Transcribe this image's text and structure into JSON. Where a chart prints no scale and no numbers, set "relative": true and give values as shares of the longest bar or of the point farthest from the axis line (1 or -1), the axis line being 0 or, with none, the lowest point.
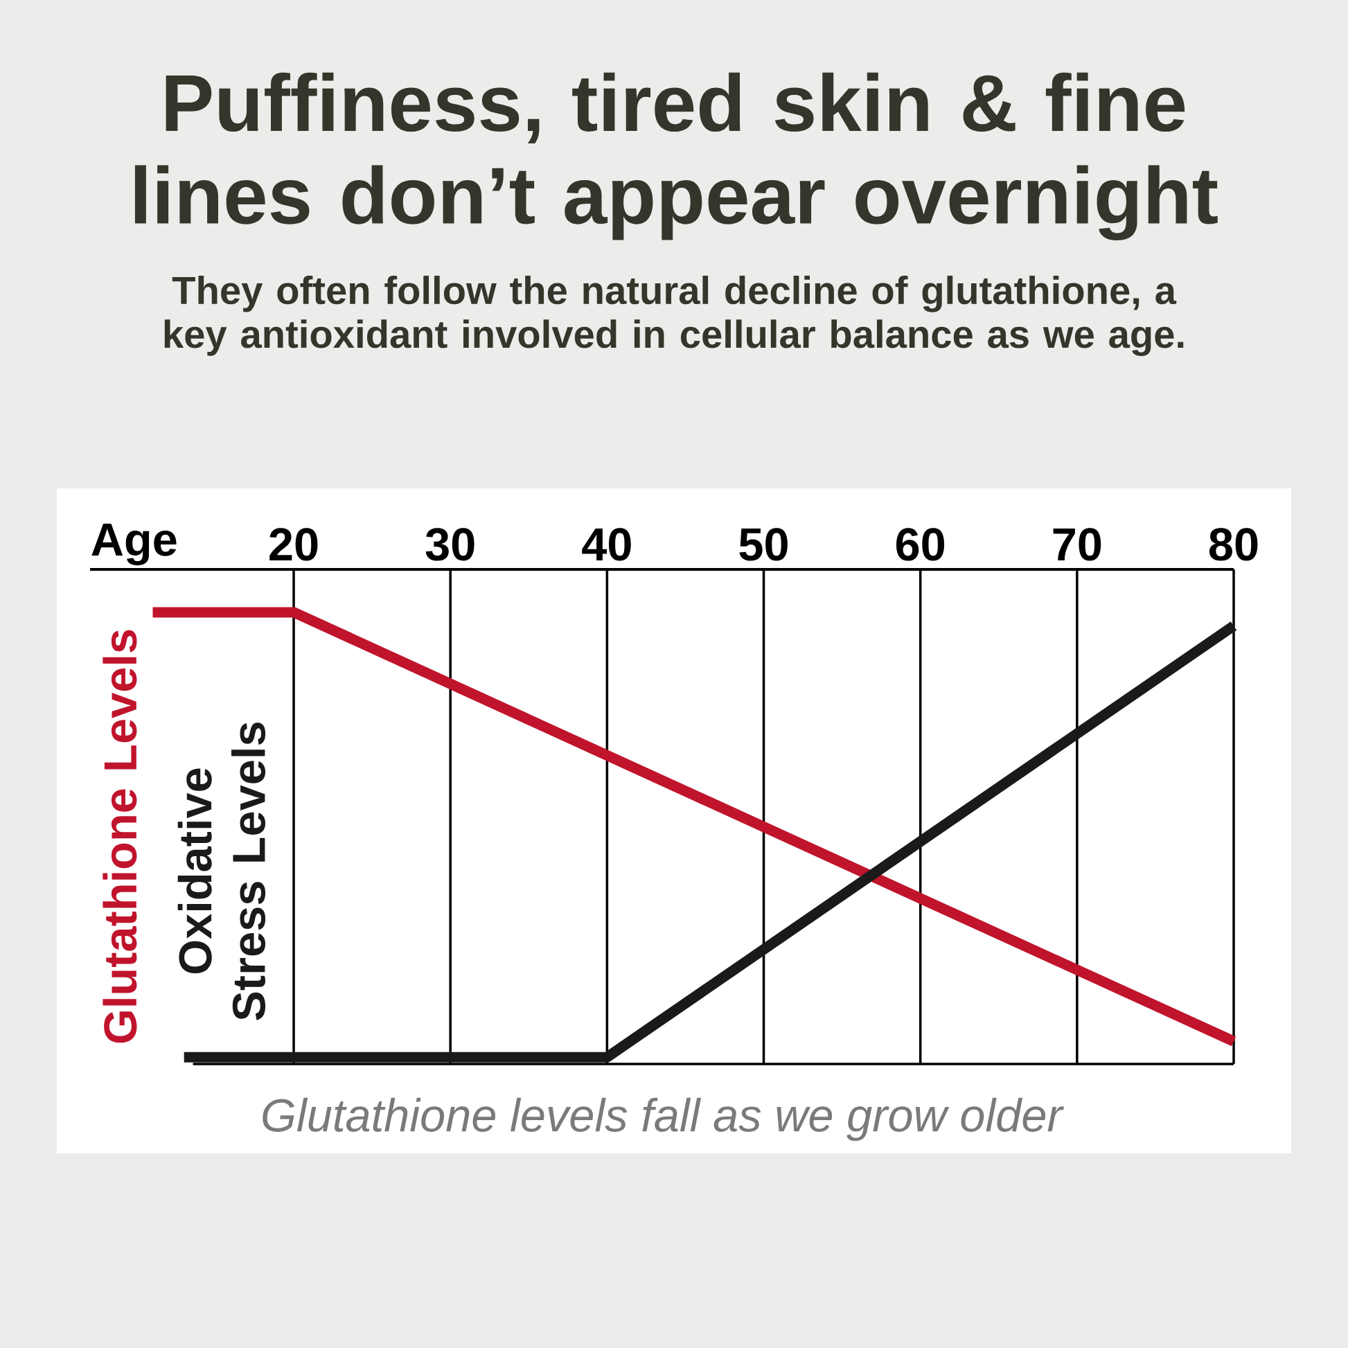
{
  "chart_data": {
    "type": "line",
    "title": "Puffiness, tired skin & fine lines don’t appear overnight",
    "subtitle": "They often follow the natural decline of glutathione, a key antioxidant involved in cellular balance as we age.",
    "xlabel": "Age",
    "annotations": [
      "Glutathione levels fall as we grow older"
    ],
    "relative": true,
    "xlim": [
      7,
      80
    ],
    "xticks": [
      20,
      30,
      40,
      50,
      60,
      70,
      80
    ],
    "grid": "x",
    "marker": "none",
    "line_style": "solid",
    "series": [
      {
        "name": "Glutathione Levels",
        "color": "#c0142c",
        "x": [
          11,
          20,
          80
        ],
        "values": [
          1,
          1,
          0.05
        ]
      },
      {
        "name": "Oxidative Stress Levels",
        "color": "#1a1a1a",
        "x": [
          13,
          40,
          80
        ],
        "values": [
          0.015,
          0.015,
          0.97
        ]
      }
    ]
  }
}
